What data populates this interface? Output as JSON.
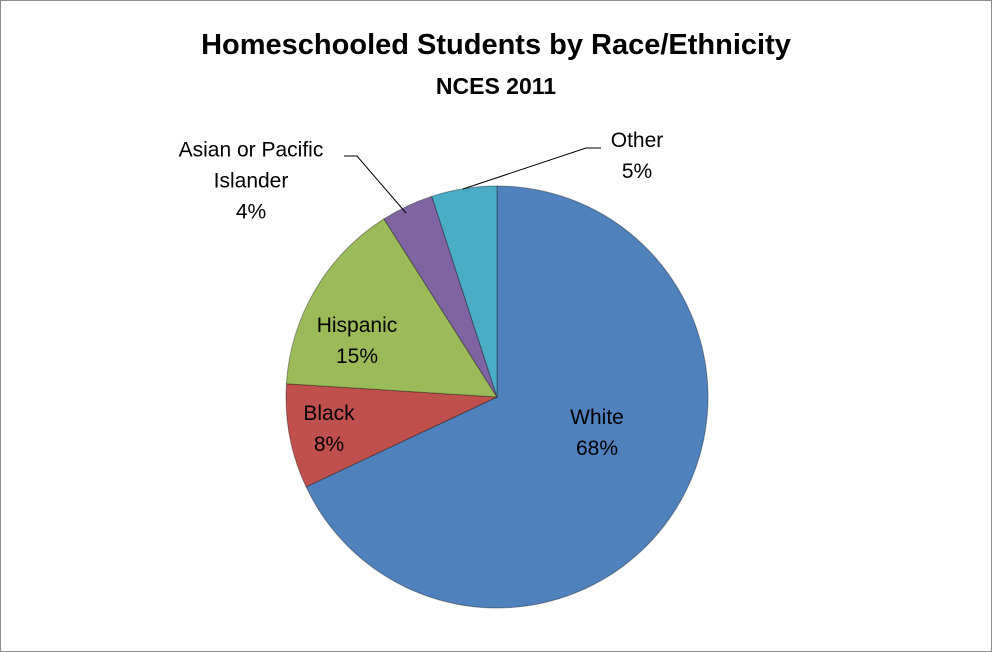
{
  "chart_data": {
    "type": "pie",
    "title": "Homeschooled Students by Race/Ethnicity",
    "subtitle": "NCES 2011",
    "categories": [
      "White",
      "Black",
      "Hispanic",
      "Asian or Pacific Islander",
      "Other"
    ],
    "values": [
      68,
      8,
      15,
      4,
      5
    ],
    "value_labels": [
      "68%",
      "8%",
      "15%",
      "4%",
      "5%"
    ],
    "colors": [
      "#4f81bd",
      "#c0504d",
      "#9bbb59",
      "#8064a2",
      "#4bacc6"
    ]
  }
}
